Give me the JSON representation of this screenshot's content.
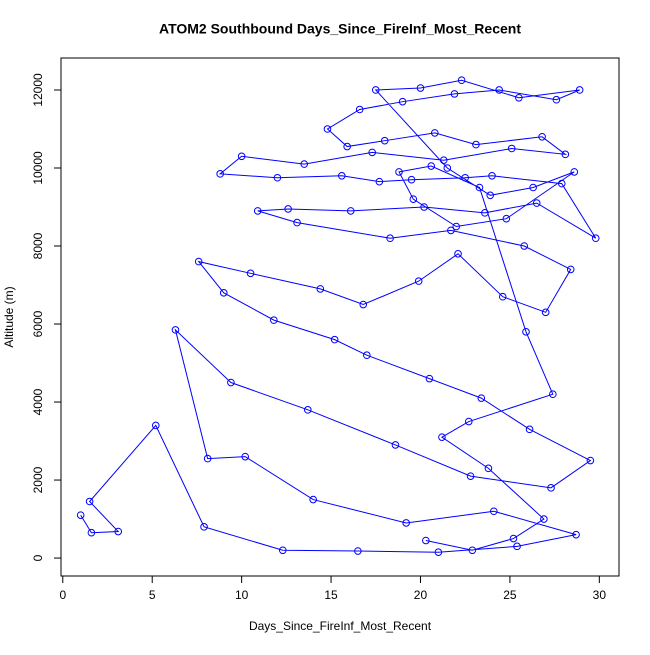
{
  "chart_data": {
    "type": "line",
    "title": "ATOM2 Southbound Days_Since_FireInf_Most_Recent",
    "x_label": "Days_Since_FireInf_Most_Recent",
    "y_label": "Altitude (m)",
    "xlim": [
      -0.1,
      31.1
    ],
    "ylim": [
      -460,
      12820
    ],
    "xticks": [
      0,
      5,
      10,
      15,
      20,
      25,
      30
    ],
    "yticks": [
      0,
      2000,
      4000,
      6000,
      8000,
      10000,
      12000
    ],
    "series": [
      {
        "color": "#0000ff",
        "x": [
          1.0,
          1.6,
          3.1,
          1.5,
          5.2,
          7.9,
          12.3,
          16.5,
          21.0,
          25.4,
          28.7,
          24.1,
          19.2,
          14.0,
          10.2,
          8.1,
          6.3,
          9.4,
          13.7,
          18.6,
          22.8,
          27.3,
          29.5,
          26.1,
          23.4,
          20.5,
          17.0,
          15.2,
          11.8,
          9.0,
          7.6,
          10.5,
          14.4,
          16.8,
          19.9,
          22.1,
          24.6,
          27.0,
          28.4,
          25.8,
          21.7,
          18.3,
          13.1,
          10.9,
          12.6,
          16.1,
          20.2,
          23.6,
          26.5,
          29.8,
          27.9,
          24.0,
          22.5,
          19.5,
          17.7,
          15.6,
          12.0,
          8.8,
          10.0,
          13.5,
          17.3,
          21.3,
          25.1,
          28.1,
          26.8,
          23.1,
          20.8,
          18.0,
          15.9,
          14.8,
          16.6,
          19.0,
          21.9,
          24.4,
          27.6,
          28.9,
          25.5,
          22.3,
          20.0,
          17.5,
          21.5,
          23.9,
          26.3,
          28.6,
          24.8,
          22.0,
          19.6,
          18.8,
          20.6,
          23.3,
          25.9,
          27.4,
          22.7,
          21.2,
          23.8,
          26.9,
          25.2,
          22.9,
          20.3
        ],
        "values": [
          1100,
          650,
          680,
          1450,
          3400,
          800,
          200,
          180,
          150,
          300,
          600,
          1200,
          900,
          1500,
          2600,
          2550,
          5850,
          4500,
          3800,
          2900,
          2100,
          1800,
          2500,
          3300,
          4100,
          4600,
          5200,
          5600,
          6100,
          6800,
          7600,
          7300,
          6900,
          6500,
          7100,
          7800,
          6700,
          6300,
          7400,
          8000,
          8400,
          8200,
          8600,
          8900,
          8950,
          8900,
          9000,
          8850,
          9100,
          8200,
          9600,
          9800,
          9750,
          9700,
          9650,
          9800,
          9750,
          9850,
          10300,
          10100,
          10400,
          10200,
          10500,
          10350,
          10800,
          10600,
          10900,
          10700,
          10550,
          11000,
          11500,
          11700,
          11900,
          12000,
          11750,
          12000,
          11800,
          12250,
          12050,
          12000,
          10000,
          9300,
          9500,
          9900,
          8700,
          8500,
          9200,
          9900,
          10050,
          9500,
          5800,
          4200,
          3500,
          3100,
          2300,
          1000,
          500,
          200,
          450
        ]
      }
    ]
  }
}
